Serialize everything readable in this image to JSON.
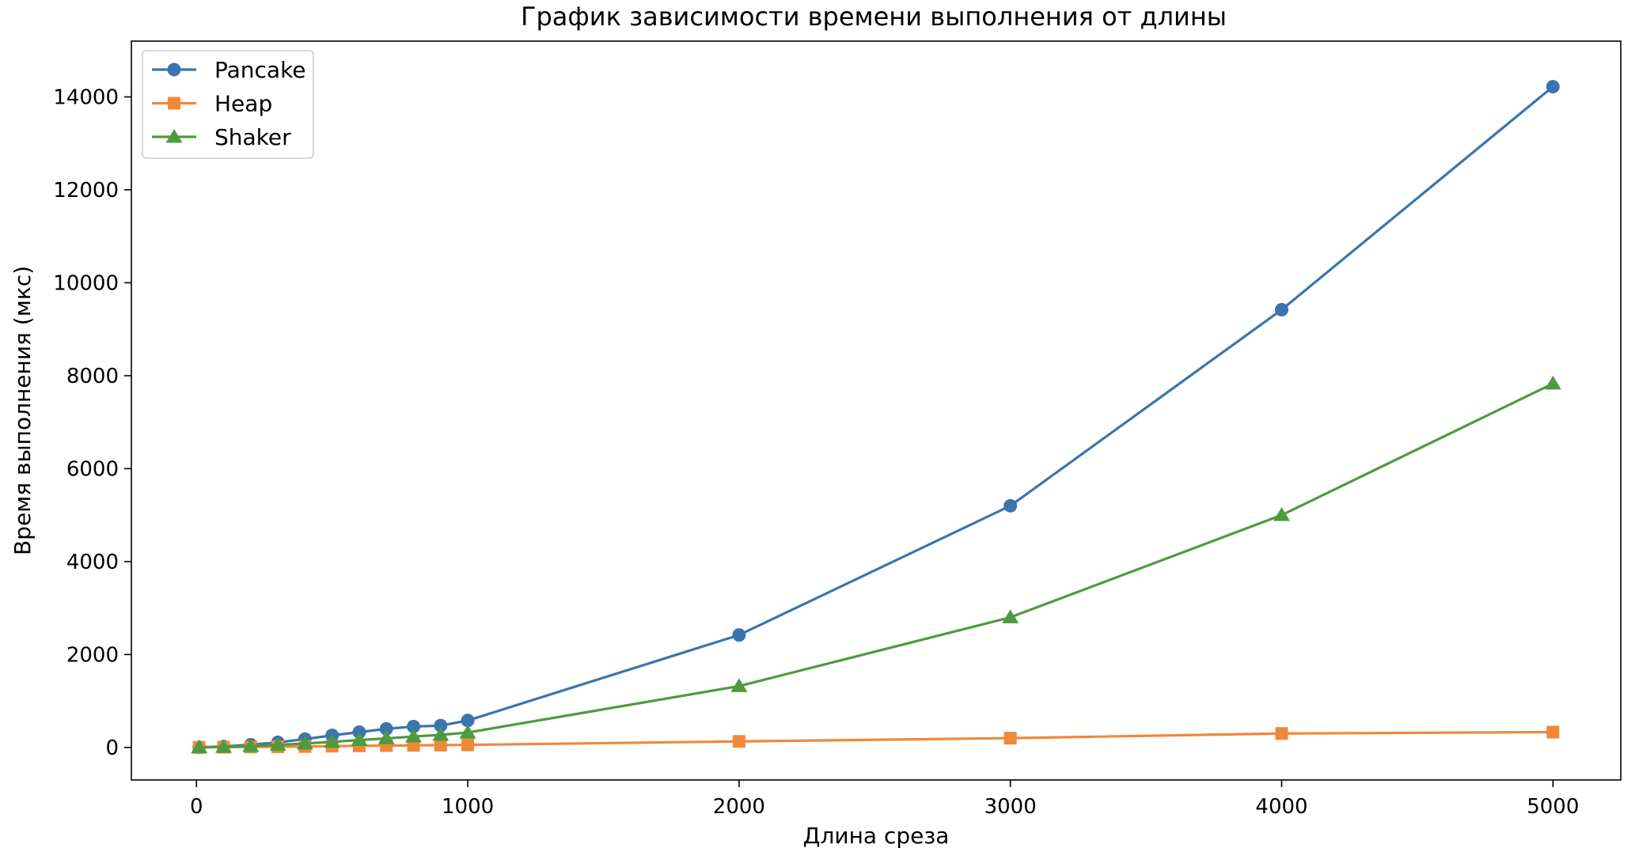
{
  "chart_data": {
    "type": "line",
    "title": "График зависимости времени выполнения от длины",
    "xlabel": "Длина среза",
    "ylabel": "Время выполнения (мкс)",
    "xlim": [
      -240,
      5250
    ],
    "ylim": [
      -700,
      15200
    ],
    "xticks": [
      0,
      1000,
      2000,
      3000,
      4000,
      5000
    ],
    "yticks": [
      0,
      2000,
      4000,
      6000,
      8000,
      10000,
      12000,
      14000
    ],
    "grid": false,
    "legend_position": "top-left",
    "x": [
      10,
      100,
      200,
      300,
      400,
      500,
      600,
      700,
      800,
      900,
      1000,
      2000,
      3000,
      4000,
      5000
    ],
    "series": [
      {
        "name": "Pancake",
        "color": "#3a75ad",
        "marker": "circle",
        "values": [
          5,
          20,
          60,
          110,
          180,
          260,
          330,
          400,
          450,
          470,
          580,
          2420,
          5200,
          9420,
          14220
        ]
      },
      {
        "name": "Heap",
        "color": "#f0883a",
        "marker": "square",
        "values": [
          2,
          6,
          10,
          15,
          20,
          28,
          35,
          40,
          45,
          50,
          55,
          130,
          200,
          300,
          330
        ]
      },
      {
        "name": "Shaker",
        "color": "#4e9a3e",
        "marker": "triangle",
        "values": [
          3,
          10,
          30,
          55,
          85,
          120,
          160,
          195,
          235,
          270,
          320,
          1320,
          2800,
          5000,
          7830
        ]
      }
    ]
  }
}
